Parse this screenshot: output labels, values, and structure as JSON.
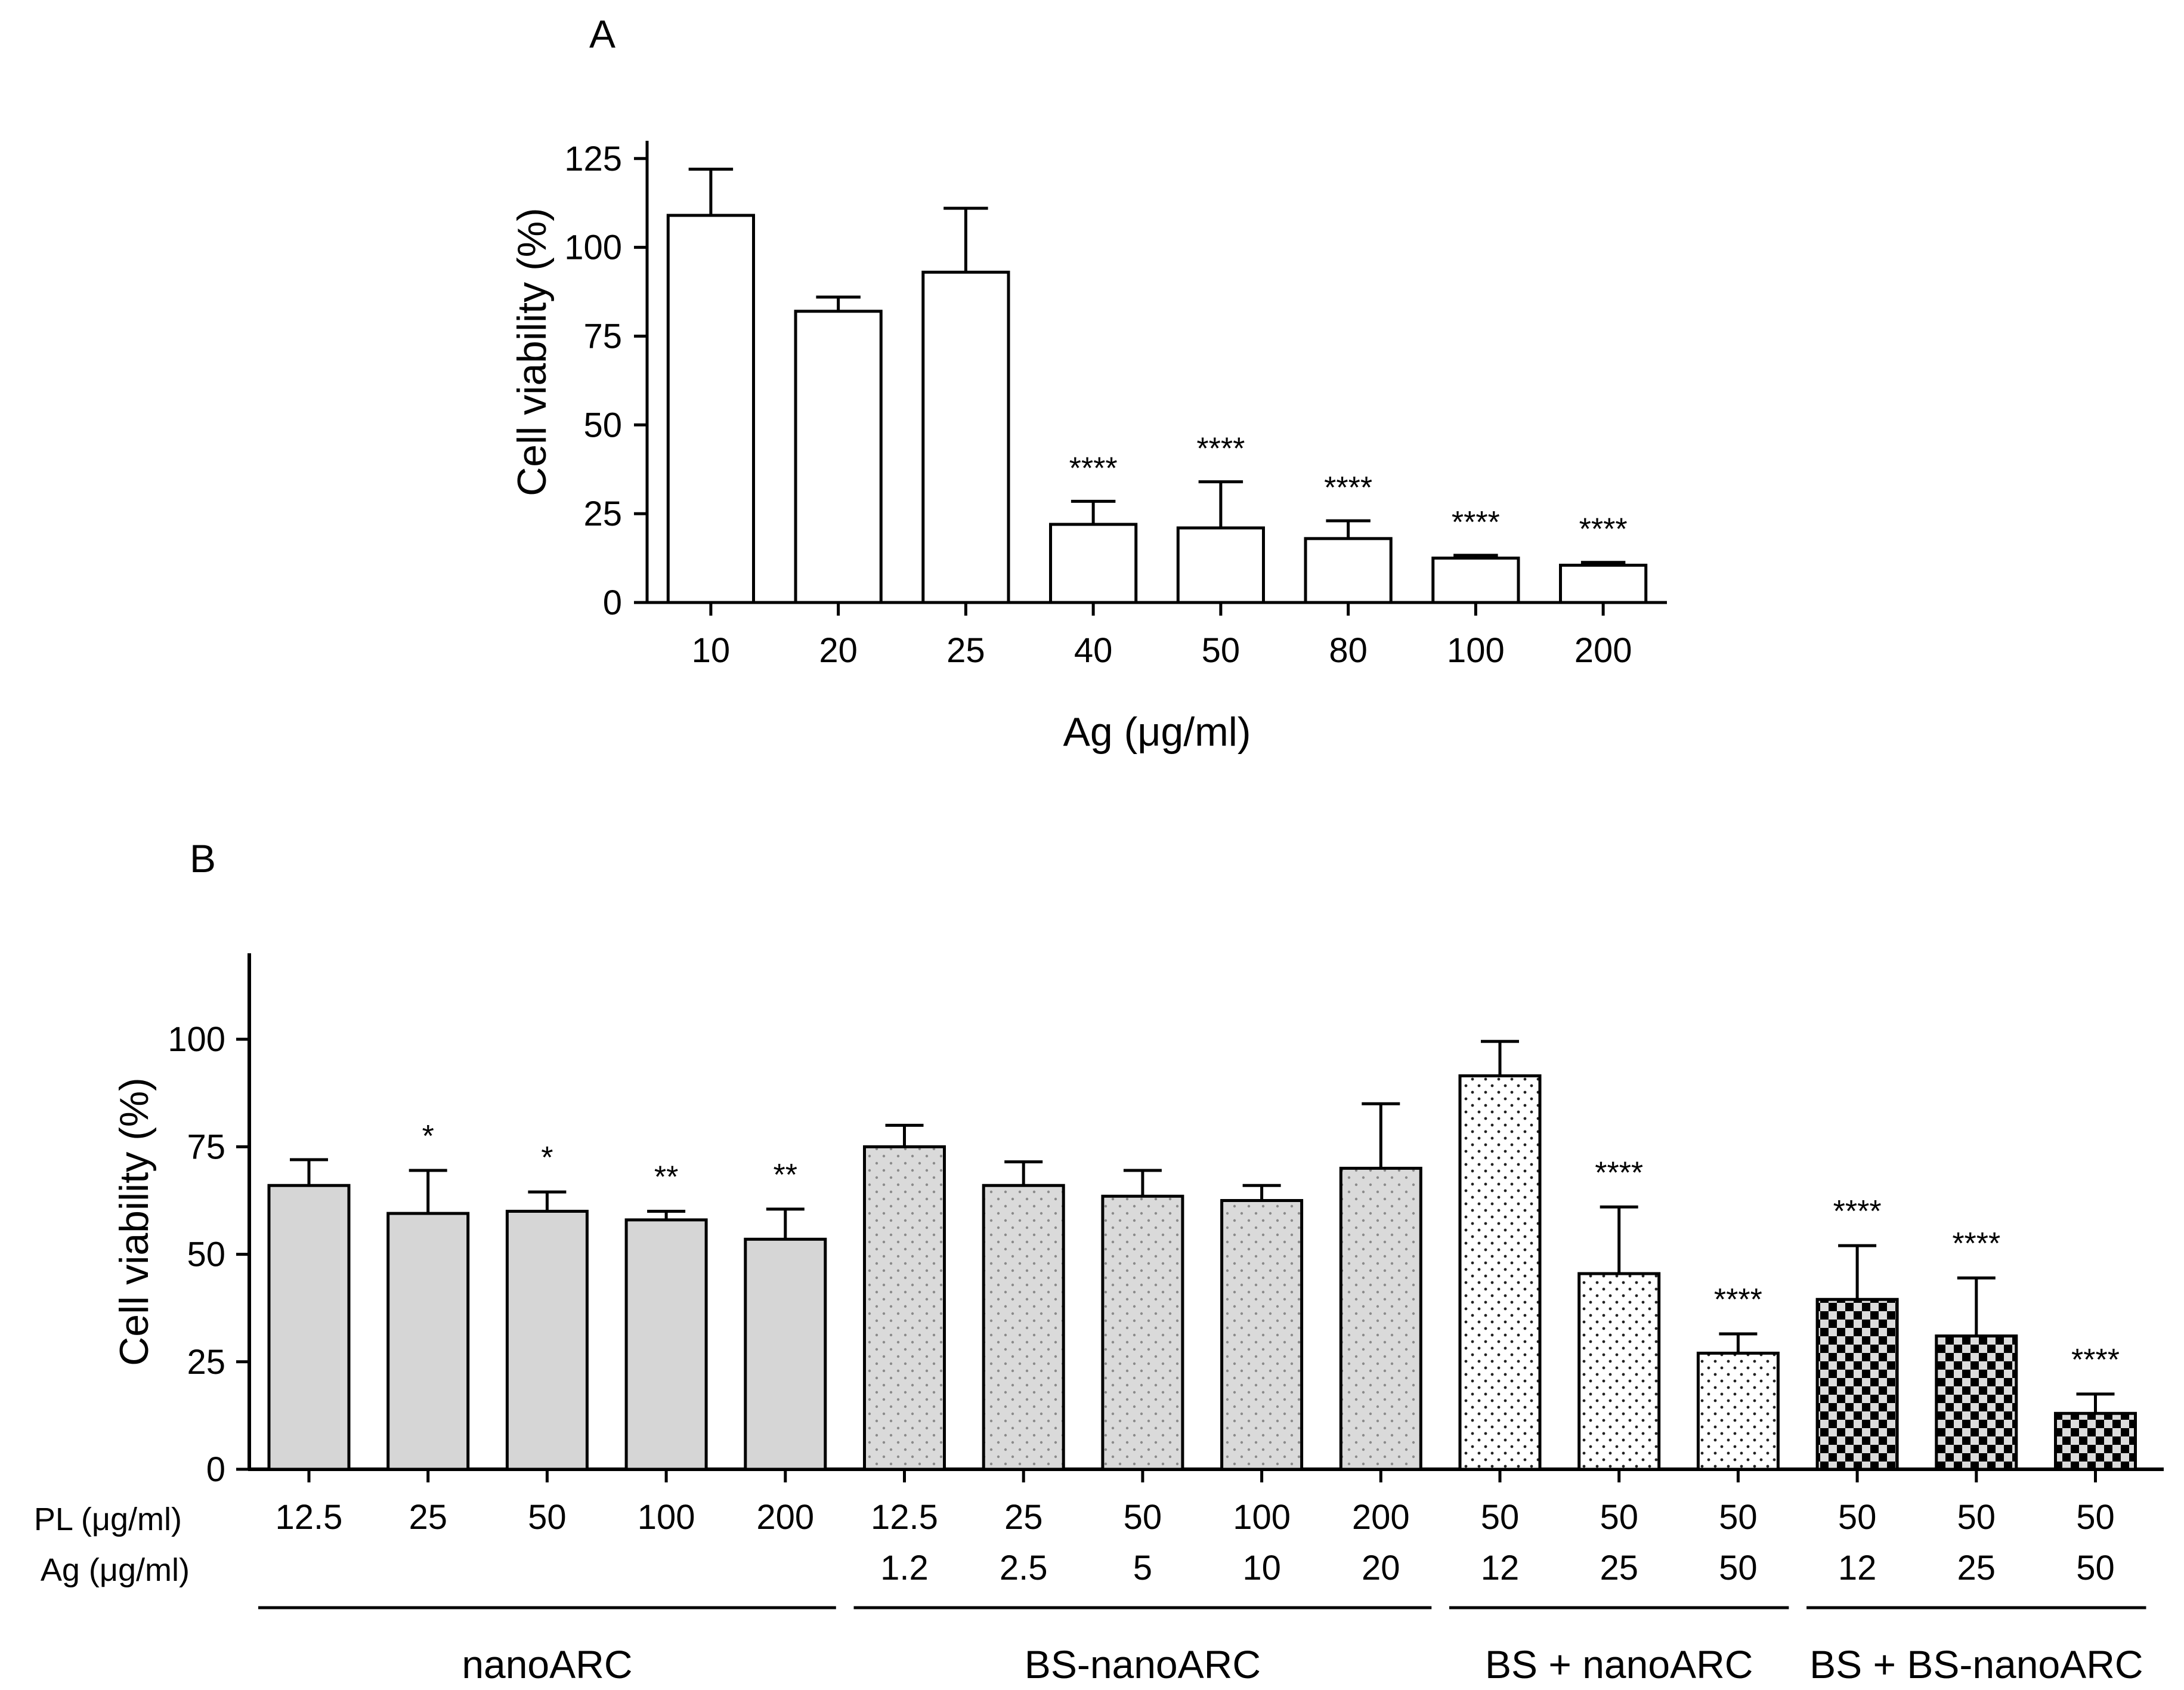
{
  "chart_data": [
    {
      "panel": "A",
      "type": "bar",
      "title": "",
      "xlabel": "Ag (μg/ml)",
      "ylabel": "Cell viability (%)",
      "ylim": [
        0,
        130
      ],
      "yticks": [
        0,
        25,
        50,
        75,
        100,
        125
      ],
      "categories": [
        "10",
        "20",
        "25",
        "40",
        "50",
        "80",
        "100",
        "200"
      ],
      "values": [
        109,
        82,
        93,
        22,
        21,
        18,
        12.5,
        10.5
      ],
      "errors": [
        13,
        4,
        18,
        6.5,
        13,
        5,
        0.8,
        0.8
      ],
      "significance": [
        "",
        "",
        "",
        "****",
        "****",
        "****",
        "****",
        "****"
      ],
      "fill": "white"
    },
    {
      "panel": "B",
      "type": "bar",
      "title": "",
      "xlabel": "",
      "ylabel": "Cell viability (%)",
      "ylim": [
        0,
        120
      ],
      "yticks": [
        0,
        25,
        50,
        75,
        100
      ],
      "row_labels": [
        "PL (μg/ml)",
        "Ag (μg/ml)"
      ],
      "pl_values": [
        "12.5",
        "25",
        "50",
        "100",
        "200",
        "12.5",
        "25",
        "50",
        "100",
        "200",
        "50",
        "50",
        "50",
        "50",
        "50",
        "50"
      ],
      "ag_values": [
        "",
        "",
        "",
        "",
        "",
        "1.2",
        "2.5",
        "5",
        "10",
        "20",
        "12",
        "25",
        "50",
        "12",
        "25",
        "50"
      ],
      "values": [
        66,
        59.5,
        60,
        58,
        53.5,
        75,
        66,
        63.5,
        62.5,
        70,
        91.5,
        45.5,
        27,
        39.5,
        31,
        13
      ],
      "errors": [
        6,
        10,
        4.5,
        2,
        7,
        5,
        5.5,
        6,
        3.5,
        15,
        8,
        15.5,
        4.5,
        12.5,
        13.5,
        4.5
      ],
      "significance": [
        "",
        "*",
        "*",
        "**",
        "**",
        "",
        "",
        "",
        "",
        "",
        "",
        "****",
        "****",
        "****",
        "****",
        "****"
      ],
      "groups": [
        {
          "label": "nanoARC",
          "pattern": "solid-gray"
        },
        {
          "label": "BS-nanoARC",
          "pattern": "gray-dots"
        },
        {
          "label": "BS + nanoARC",
          "pattern": "white-dots"
        },
        {
          "label": "BS + BS-nanoARC",
          "pattern": "checkerboard"
        }
      ],
      "group_index": [
        0,
        0,
        0,
        0,
        0,
        1,
        1,
        1,
        1,
        1,
        2,
        2,
        2,
        3,
        3,
        3
      ]
    }
  ]
}
